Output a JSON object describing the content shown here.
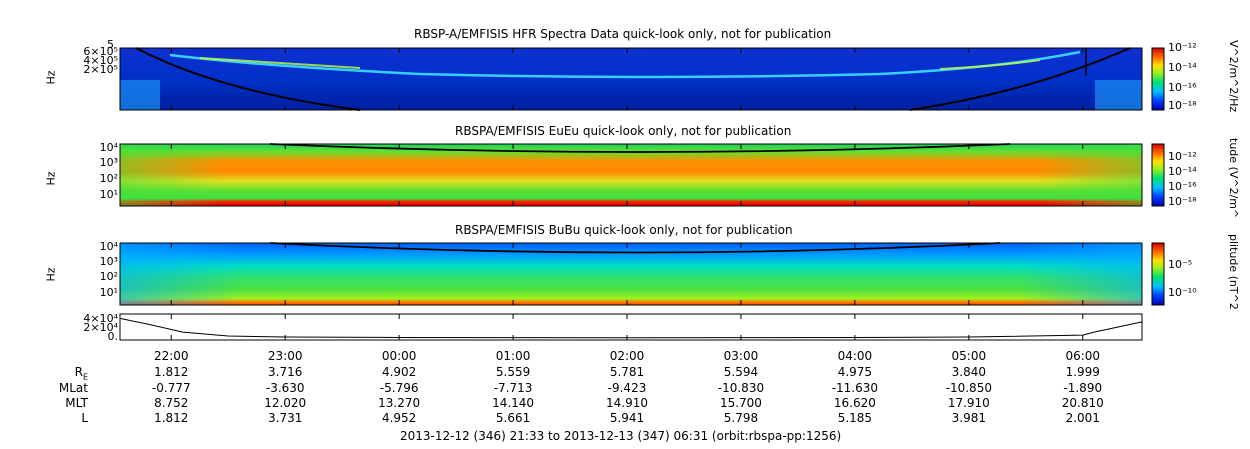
{
  "chart_data": [
    {
      "type": "heatmap",
      "title": "RBSP-A/EMFISIS  HFR Spectra Data quick-look only, not for publication",
      "ylabel": "Hz",
      "yticks": [
        "6×10⁵",
        "4×10⁵",
        "2×10⁵"
      ],
      "ytick_top": "5",
      "colorbar_label": "V^2/m^2/Hz",
      "colorbar_ticks": [
        "10⁻¹²",
        "10⁻¹⁴",
        "10⁻¹⁶",
        "10⁻¹⁸"
      ]
    },
    {
      "type": "heatmap",
      "title": "RBSPA/EMFISIS  EuEu quick-look only, not for publication",
      "ylabel": "Hz",
      "yticks": [
        "10⁴",
        "10³",
        "10²",
        "10¹"
      ],
      "colorbar_label": "tude (V^2/m^",
      "colorbar_ticks": [
        "10⁻¹²",
        "10⁻¹⁴",
        "10⁻¹⁶",
        "10⁻¹⁸"
      ]
    },
    {
      "type": "heatmap",
      "title": "RBSPA/EMFISIS  BuBu quick-look only, not for publication",
      "ylabel": "Hz",
      "yticks": [
        "10⁴",
        "10³",
        "10²",
        "10¹"
      ],
      "colorbar_label": "plitude (nT^2",
      "colorbar_ticks": [
        "10⁻⁵",
        "10⁻¹⁰"
      ]
    },
    {
      "type": "line",
      "yticks": [
        "4×10⁴",
        "2×10⁴",
        "0."
      ],
      "x_hours": [
        21.55,
        21.8,
        22.1,
        22.5,
        23.0,
        24.0,
        25.0,
        26.0,
        27.0,
        28.0,
        29.0,
        30.0,
        30.1,
        30.3,
        30.52
      ],
      "y": [
        40000,
        28000,
        12000,
        4000,
        2000,
        1000,
        800,
        700,
        800,
        1000,
        2000,
        6000,
        12000,
        22000,
        33000
      ]
    }
  ],
  "axis": {
    "time_labels": [
      "22:00",
      "23:00",
      "00:00",
      "01:00",
      "02:00",
      "03:00",
      "04:00",
      "05:00",
      "06:00"
    ],
    "rows": [
      {
        "label": "R_E",
        "values": [
          "1.812",
          "3.716",
          "4.902",
          "5.559",
          "5.781",
          "5.594",
          "4.975",
          "3.840",
          "1.999"
        ]
      },
      {
        "label": "MLat",
        "values": [
          "-0.777",
          "-3.630",
          "-5.796",
          "-7.713",
          "-9.423",
          "-10.830",
          "-11.630",
          "-10.850",
          "-1.890"
        ]
      },
      {
        "label": "MLT",
        "values": [
          "8.752",
          "12.020",
          "13.270",
          "14.140",
          "14.910",
          "15.700",
          "16.620",
          "17.910",
          "20.810"
        ]
      },
      {
        "label": "L",
        "values": [
          "1.812",
          "3.731",
          "4.952",
          "5.661",
          "5.941",
          "5.798",
          "5.185",
          "3.981",
          "2.001"
        ]
      }
    ]
  },
  "footer": "2013-12-12 (346) 21:33 to 2013-12-13 (347) 06:31 (orbit:rbspa-pp:1256)",
  "colors": {
    "background": "#ffffff",
    "axis": "#000000",
    "colormap": [
      "#0000b0",
      "#0030ff",
      "#00a0ff",
      "#00e0a0",
      "#30e030",
      "#c0ff20",
      "#ffe000",
      "#ff8000",
      "#ff2000",
      "#c00000"
    ]
  }
}
